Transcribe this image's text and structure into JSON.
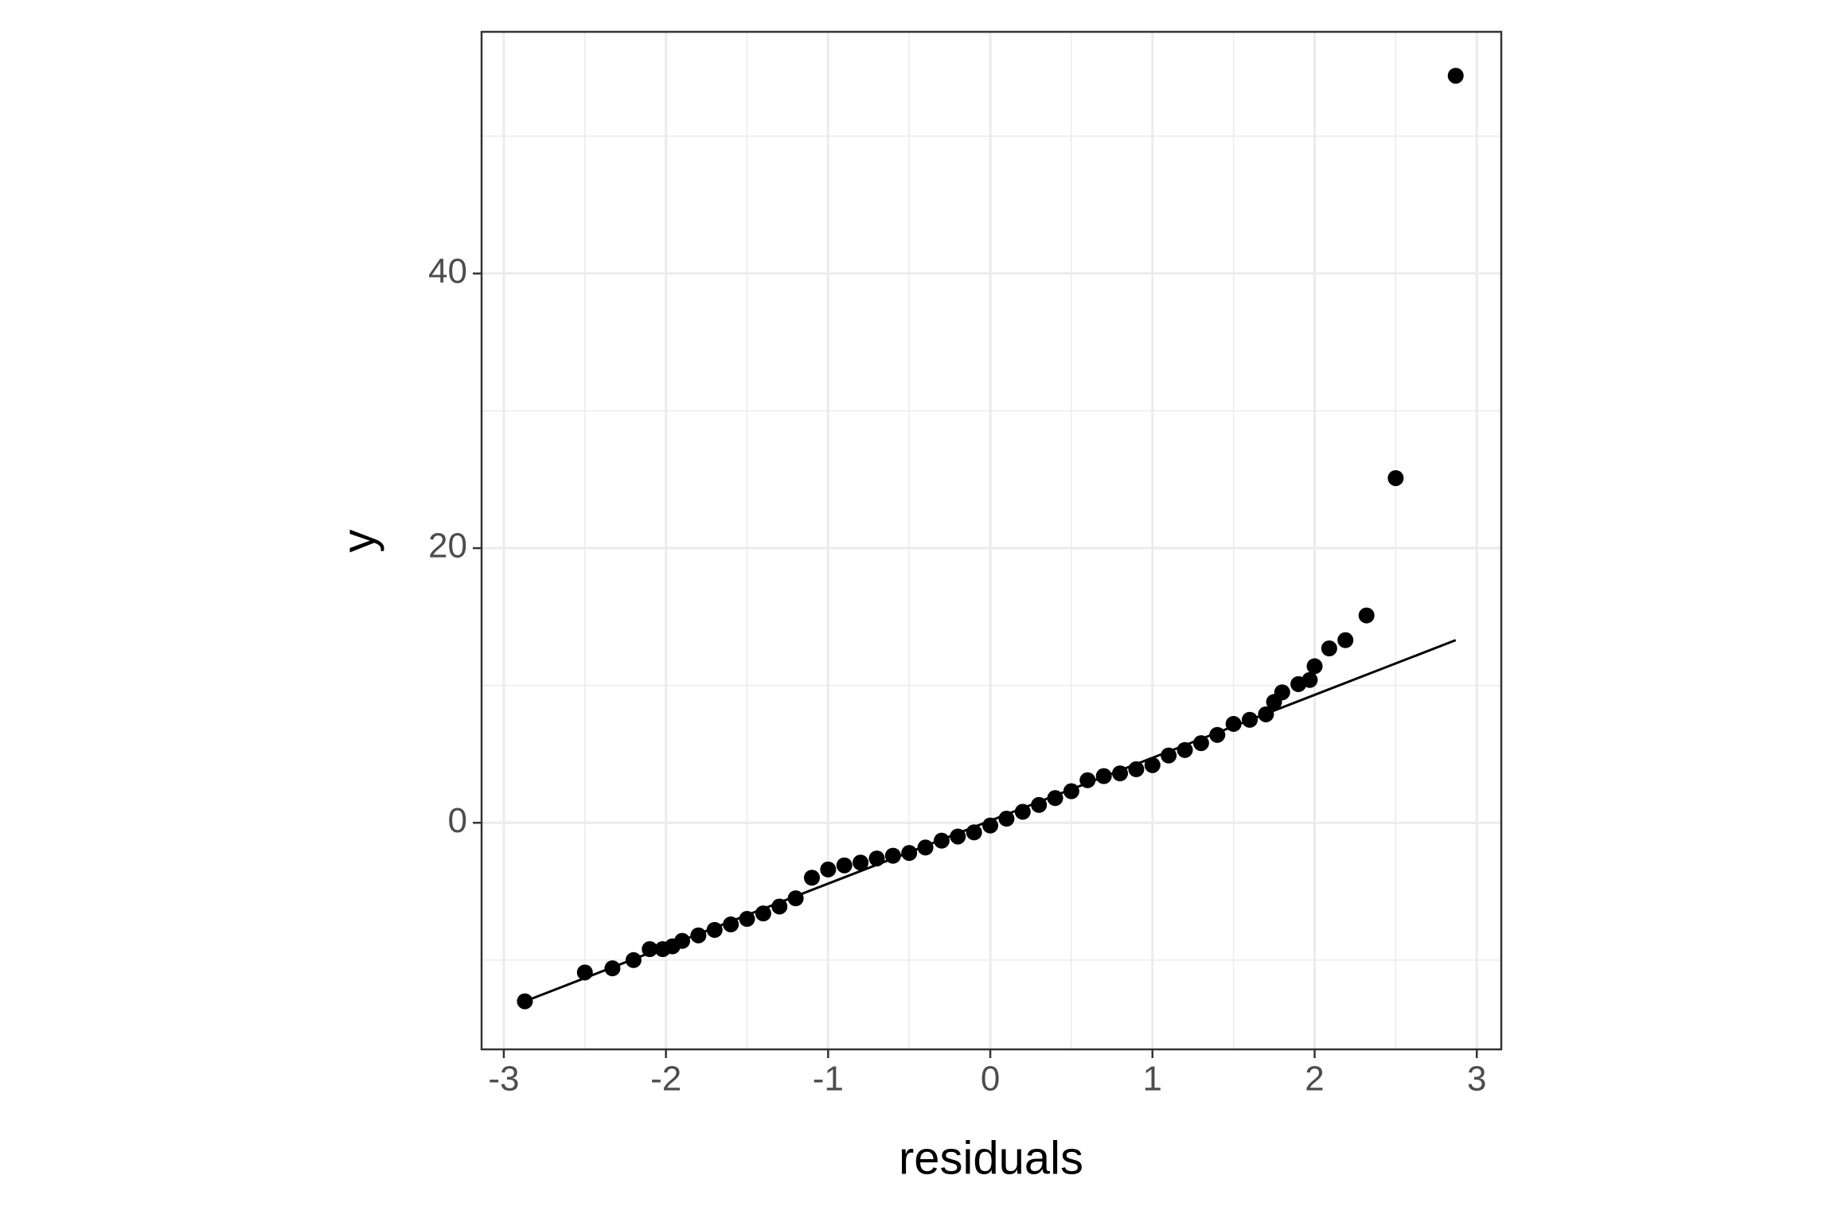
{
  "chart_data": {
    "type": "scatter",
    "x_label": "residuals",
    "y_label": "y",
    "xlim": [
      -3.137,
      3.151
    ],
    "ylim": [
      -16.5,
      57.6
    ],
    "xticks": [
      -3,
      -2,
      -1,
      0,
      1,
      2,
      3
    ],
    "yticks": [
      0,
      20,
      40
    ],
    "x_minor_grid": [
      -2.5,
      -1.5,
      -0.5,
      0.5,
      1.5,
      2.5
    ],
    "y_minor_grid": [
      -10,
      10,
      30,
      50
    ],
    "grid": true,
    "color": "#000000",
    "series": [
      {
        "x": [
          -2.87,
          -2.5,
          -2.33,
          -2.2,
          -2.1,
          -2.02,
          -1.96,
          -1.9,
          -1.8,
          -1.7,
          -1.6,
          -1.5,
          -1.4,
          -1.3,
          -1.2,
          -1.1,
          -1.0,
          -0.9,
          -0.8,
          -0.7,
          -0.6,
          -0.5,
          -0.4,
          -0.3,
          -0.2,
          -0.1,
          0.0,
          0.1,
          0.2,
          0.3,
          0.4,
          0.5,
          0.6,
          0.7,
          0.8,
          0.9,
          1.0,
          1.1,
          1.2,
          1.3,
          1.4,
          1.5,
          1.6,
          1.7,
          1.75,
          1.8,
          1.9,
          1.97,
          2.0,
          2.09,
          2.19,
          2.32,
          2.5,
          2.87
        ],
        "values": [
          -13.0,
          -10.9,
          -10.6,
          -10.0,
          -9.2,
          -9.2,
          -9.0,
          -8.6,
          -8.2,
          -7.8,
          -7.4,
          -7.0,
          -6.6,
          -6.1,
          -5.5,
          -4.0,
          -3.4,
          -3.1,
          -2.9,
          -2.6,
          -2.4,
          -2.2,
          -1.8,
          -1.3,
          -1.0,
          -0.7,
          -0.2,
          0.3,
          0.8,
          1.3,
          1.8,
          2.3,
          3.1,
          3.4,
          3.6,
          3.9,
          4.2,
          4.9,
          5.3,
          5.8,
          6.4,
          7.2,
          7.5,
          7.9,
          8.8,
          9.5,
          10.1,
          10.4,
          11.4,
          12.7,
          13.3,
          15.1,
          25.1,
          54.4
        ]
      }
    ],
    "reference_line": {
      "x": [
        -2.87,
        2.87
      ],
      "y": [
        -13.0,
        13.3
      ]
    }
  }
}
